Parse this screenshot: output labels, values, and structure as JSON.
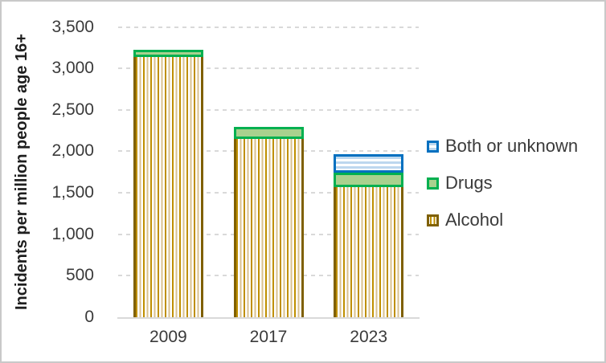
{
  "colors": {
    "both_border": "#0070C0",
    "both_fill": "#BDD7EE",
    "drugs_border": "#00B050",
    "drugs_fill": "#A9D18E",
    "alcohol_border": "#7F6000",
    "alcohol_stripe_dark": "#BF8F00",
    "alcohol_stripe_light": "#D9C18F",
    "gridline": "#D9D9D9",
    "axis_text": "#3A3A3A"
  },
  "chart_data": {
    "type": "bar",
    "stacked": true,
    "categories": [
      "2009",
      "2017",
      "2023"
    ],
    "series": [
      {
        "key": "alcohol",
        "name": "Alcohol",
        "values": [
          3140,
          2150,
          1565
        ]
      },
      {
        "key": "drugs",
        "name": "Drugs",
        "values": [
          85,
          145,
          175
        ]
      },
      {
        "key": "both",
        "name": "Both or unknown",
        "values": [
          0,
          0,
          230
        ]
      }
    ],
    "totals": [
      3225,
      2295,
      1970
    ],
    "title": "",
    "xlabel": "",
    "ylabel": "Incidents per million people age 16+",
    "ylim": [
      0,
      3500
    ],
    "ytick_step": 500,
    "ytick_labels": [
      "0",
      "500",
      "1,000",
      "1,500",
      "2,000",
      "2,500",
      "3,000",
      "3,500"
    ],
    "grid": "horizontal dashed",
    "legend_position": "right",
    "legend_order": [
      "both",
      "drugs",
      "alcohol"
    ],
    "legend_labels": [
      "Both or unknown",
      "Drugs",
      "Alcohol"
    ]
  }
}
